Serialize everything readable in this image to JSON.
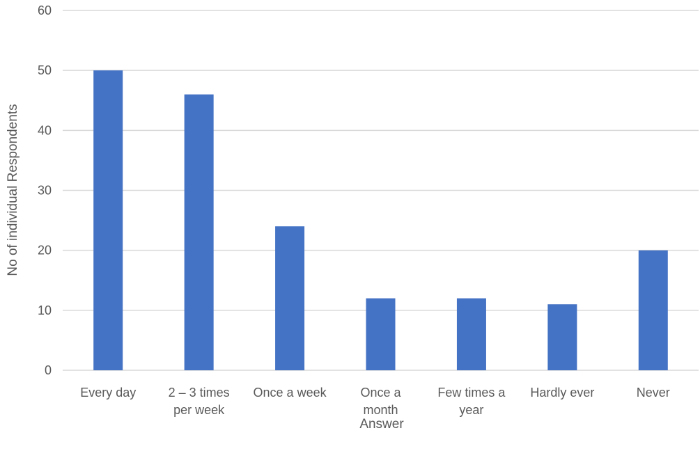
{
  "chart_data": {
    "type": "bar",
    "categories": [
      [
        "Every day"
      ],
      [
        "2 – 3 times",
        "per week"
      ],
      [
        "Once a week"
      ],
      [
        "Once a",
        "month"
      ],
      [
        "Few times a",
        "year"
      ],
      [
        "Hardly ever"
      ],
      [
        "Never"
      ]
    ],
    "values": [
      50,
      46,
      24,
      12,
      12,
      11,
      20
    ],
    "xlabel": "Answer",
    "ylabel": "No of individual  Respondents",
    "ylim": [
      0,
      60
    ],
    "yticks": [
      0,
      10,
      20,
      30,
      40,
      50,
      60
    ],
    "grid": true,
    "bar_color": "#4472c4",
    "grid_color": "#d9d9d9",
    "text_color": "#595959"
  }
}
